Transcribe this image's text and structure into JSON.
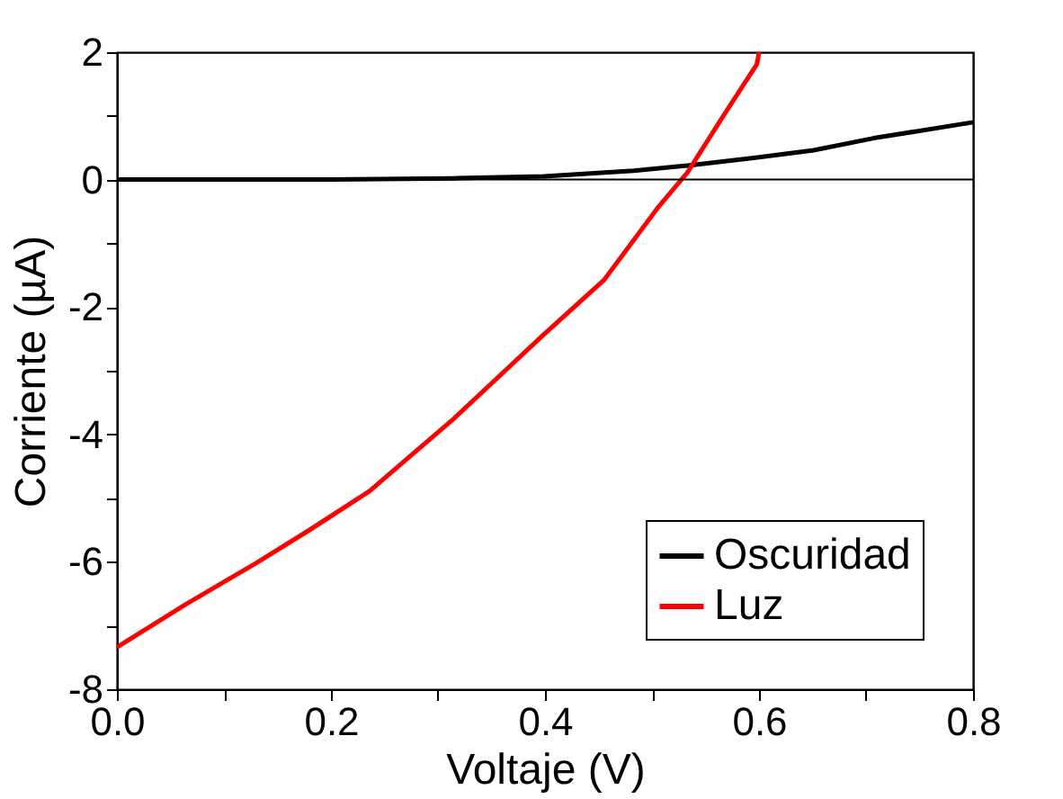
{
  "chart_data": {
    "type": "line",
    "xlabel": "Voltaje (V)",
    "ylabel": "Corriente (µA)",
    "xlim": [
      0,
      0.8
    ],
    "ylim": [
      -8,
      2
    ],
    "xticks": [
      {
        "value": 0,
        "label": "0.0"
      },
      {
        "value": 0.1,
        "label": null
      },
      {
        "value": 0.2,
        "label": "0.2"
      },
      {
        "value": 0.3,
        "label": null
      },
      {
        "value": 0.4,
        "label": "0.4"
      },
      {
        "value": 0.5,
        "label": null
      },
      {
        "value": 0.6,
        "label": "0.6"
      },
      {
        "value": 0.7,
        "label": null
      },
      {
        "value": 0.8,
        "label": "0.8"
      }
    ],
    "yticks": [
      -8,
      {
        "value": -7,
        "label": null
      },
      -6,
      {
        "value": -5,
        "label": null
      },
      -4,
      {
        "value": -3,
        "label": null
      },
      -2,
      {
        "value": -1,
        "label": null
      },
      0,
      {
        "value": 1,
        "label": null
      },
      2
    ],
    "grid": false,
    "legend": "bottom right",
    "line_style": "solid",
    "marker": "none",
    "ref_lines": [
      {
        "axis": "y",
        "value": 0,
        "color": "#000000"
      }
    ],
    "series": [
      {
        "name": "Oscuridad",
        "color": "#000000",
        "x": [
          0,
          0.1,
          0.2,
          0.315,
          0.399,
          0.483,
          0.539,
          0.595,
          0.651,
          0.707,
          0.8
        ],
        "values": [
          0,
          0,
          0,
          0.02,
          0.05,
          0.14,
          0.23,
          0.34,
          0.46,
          0.65,
          0.9
        ]
      },
      {
        "name": "Luz",
        "color": "#ff0000",
        "x": [
          0,
          0.063,
          0.13,
          0.18,
          0.236,
          0.315,
          0.399,
          0.455,
          0.505,
          0.533,
          0.567,
          0.598,
          0.6
        ],
        "values": [
          -7.34,
          -6.68,
          -6.02,
          -5.5,
          -4.89,
          -3.75,
          -2.43,
          -1.58,
          -0.45,
          0.11,
          1.01,
          1.81,
          2.0
        ]
      }
    ]
  }
}
